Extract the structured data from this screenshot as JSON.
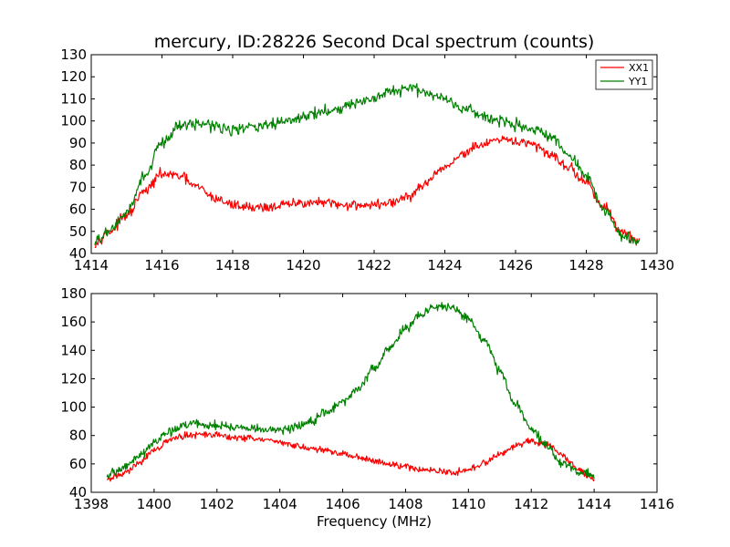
{
  "chart_data": [
    {
      "type": "line",
      "title": "mercury, ID:28226 Second Dcal spectrum (counts)",
      "xlabel": "",
      "ylabel": "",
      "xlim": [
        1414,
        1430
      ],
      "ylim": [
        40,
        130
      ],
      "xticks": [
        "1414",
        "1416",
        "1418",
        "1420",
        "1422",
        "1424",
        "1426",
        "1428",
        "1430"
      ],
      "yticks": [
        "40",
        "50",
        "60",
        "70",
        "80",
        "90",
        "100",
        "110",
        "120",
        "130"
      ],
      "grid": false,
      "legend_position": "top-right",
      "series": [
        {
          "name": "XX1",
          "color": "#ff0000",
          "noise": 1.6,
          "x": [
            1414.1,
            1414.5,
            1415.0,
            1415.5,
            1416.0,
            1416.5,
            1417.0,
            1417.5,
            1418.0,
            1418.5,
            1419.0,
            1419.5,
            1420.0,
            1420.5,
            1421.0,
            1421.5,
            1422.0,
            1422.5,
            1423.0,
            1423.5,
            1424.0,
            1424.5,
            1425.0,
            1425.5,
            1426.0,
            1426.5,
            1427.0,
            1427.5,
            1428.0,
            1428.5,
            1429.0,
            1429.5
          ],
          "y": [
            45,
            50,
            57,
            68,
            76,
            75,
            70,
            65,
            62,
            61,
            61,
            62,
            63,
            63,
            62,
            62,
            62,
            63,
            66,
            72,
            79,
            85,
            89,
            91,
            91,
            89,
            85,
            79,
            72,
            61,
            50,
            45
          ]
        },
        {
          "name": "YY1",
          "color": "#008000",
          "noise": 1.8,
          "x": [
            1414.1,
            1414.5,
            1415.0,
            1415.5,
            1416.0,
            1416.5,
            1417.0,
            1417.5,
            1418.0,
            1418.5,
            1419.0,
            1419.5,
            1420.0,
            1420.5,
            1421.0,
            1421.5,
            1422.0,
            1422.5,
            1423.0,
            1423.5,
            1424.0,
            1424.5,
            1425.0,
            1425.5,
            1426.0,
            1426.5,
            1427.0,
            1427.5,
            1428.0,
            1428.5,
            1429.0,
            1429.5
          ],
          "y": [
            45,
            50,
            58,
            75,
            90,
            98,
            99,
            98,
            96,
            97,
            98,
            100,
            102,
            104,
            106,
            108,
            110,
            113,
            115,
            113,
            110,
            106,
            103,
            100,
            98,
            96,
            92,
            85,
            75,
            60,
            48,
            45
          ]
        }
      ]
    },
    {
      "type": "line",
      "title": "",
      "xlabel": "Frequency (MHz)",
      "ylabel": "",
      "xlim": [
        1398,
        1416
      ],
      "ylim": [
        40,
        180
      ],
      "xticks": [
        "1398",
        "1400",
        "1402",
        "1404",
        "1406",
        "1408",
        "1410",
        "1412",
        "1414",
        "1416"
      ],
      "yticks": [
        "40",
        "60",
        "80",
        "100",
        "120",
        "140",
        "160",
        "180"
      ],
      "grid": false,
      "series": [
        {
          "name": "XX1",
          "color": "#ff0000",
          "noise": 1.6,
          "x": [
            1398.5,
            1399.0,
            1399.5,
            1400.0,
            1400.5,
            1401.0,
            1401.5,
            1402.0,
            1402.5,
            1403.0,
            1403.5,
            1404.0,
            1404.5,
            1405.0,
            1405.5,
            1406.0,
            1406.5,
            1407.0,
            1407.5,
            1408.0,
            1408.5,
            1409.0,
            1409.5,
            1410.0,
            1410.5,
            1411.0,
            1411.5,
            1412.0,
            1412.5,
            1413.0,
            1413.5,
            1414.0
          ],
          "y": [
            49,
            53,
            60,
            70,
            77,
            80,
            81,
            80,
            79,
            78,
            77,
            75,
            73,
            71,
            69,
            67,
            65,
            62,
            60,
            58,
            56,
            55,
            54,
            56,
            60,
            67,
            73,
            76,
            74,
            66,
            56,
            50
          ]
        },
        {
          "name": "YY1",
          "color": "#008000",
          "noise": 2.2,
          "x": [
            1398.5,
            1399.0,
            1399.5,
            1400.0,
            1400.5,
            1401.0,
            1401.5,
            1402.0,
            1402.5,
            1403.0,
            1403.5,
            1404.0,
            1404.5,
            1405.0,
            1405.5,
            1406.0,
            1406.5,
            1407.0,
            1407.5,
            1408.0,
            1408.5,
            1409.0,
            1409.5,
            1410.0,
            1410.5,
            1411.0,
            1411.5,
            1412.0,
            1412.5,
            1413.0,
            1413.5,
            1414.0
          ],
          "y": [
            52,
            57,
            65,
            75,
            83,
            88,
            88,
            87,
            86,
            85,
            84,
            84,
            86,
            90,
            96,
            104,
            114,
            127,
            142,
            156,
            166,
            171,
            170,
            163,
            147,
            126,
            102,
            85,
            72,
            60,
            54,
            52
          ]
        }
      ]
    }
  ]
}
